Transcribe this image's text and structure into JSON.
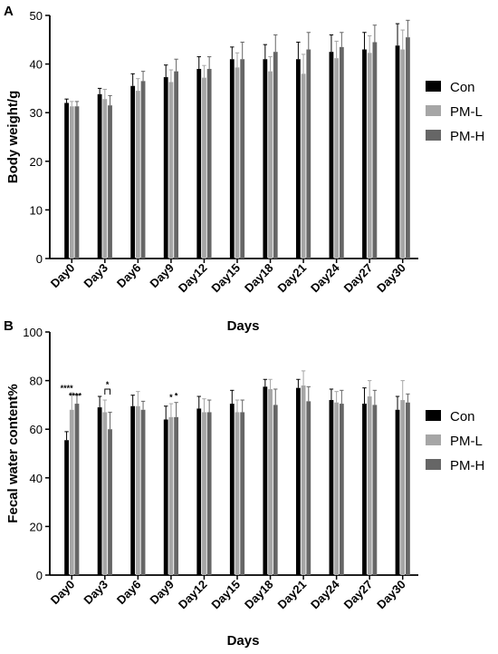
{
  "chart_data": [
    {
      "panel": "A",
      "type": "bar",
      "xlabel": "Days",
      "ylabel": "Body weight/g",
      "ylim": [
        0,
        50
      ],
      "yticks": [
        0,
        10,
        20,
        30,
        40,
        50
      ],
      "categories": [
        "Day0",
        "Day3",
        "Day6",
        "Day9",
        "Day12",
        "Day15",
        "Day18",
        "Day21",
        "Day24",
        "Day27",
        "Day30"
      ],
      "legend_position": "right",
      "series": [
        {
          "name": "Con",
          "color": "#000000",
          "values": [
            32.0,
            33.8,
            35.5,
            37.3,
            39.0,
            41.0,
            41.0,
            41.0,
            42.5,
            43.0,
            43.8
          ],
          "errors": [
            0.8,
            1.2,
            2.5,
            2.5,
            2.5,
            2.5,
            3.0,
            3.5,
            3.5,
            3.5,
            4.5
          ]
        },
        {
          "name": "PM-L",
          "color": "#a6a6a6",
          "values": [
            31.3,
            32.8,
            34.5,
            36.3,
            37.2,
            39.3,
            38.5,
            38.0,
            41.2,
            42.3,
            43.0
          ],
          "errors": [
            1.0,
            2.0,
            2.5,
            2.5,
            2.5,
            3.0,
            3.0,
            4.0,
            3.5,
            3.5,
            4.0
          ]
        },
        {
          "name": "PM-H",
          "color": "#666666",
          "values": [
            31.3,
            31.5,
            36.5,
            38.5,
            39.0,
            41.0,
            42.5,
            43.0,
            43.5,
            44.5,
            45.5
          ],
          "errors": [
            1.0,
            2.0,
            2.0,
            2.5,
            2.5,
            3.5,
            3.5,
            3.5,
            3.0,
            3.5,
            3.5
          ]
        }
      ]
    },
    {
      "panel": "B",
      "type": "bar",
      "xlabel": "Days",
      "ylabel": "Fecal water content%",
      "ylim": [
        0,
        100
      ],
      "yticks": [
        0,
        20,
        40,
        60,
        80,
        100
      ],
      "categories": [
        "Day0",
        "Day3",
        "Day6",
        "Day9",
        "Day12",
        "Day15",
        "Day18",
        "Day21",
        "Day24",
        "Day27",
        "Day30"
      ],
      "legend_position": "right",
      "series": [
        {
          "name": "Con",
          "color": "#000000",
          "values": [
            55.5,
            69.0,
            69.5,
            64.0,
            68.5,
            70.5,
            77.5,
            77.0,
            72.0,
            70.5,
            68.0
          ],
          "errors": [
            3.5,
            4.5,
            4.5,
            5.5,
            5.0,
            5.5,
            3.0,
            3.5,
            4.5,
            6.5,
            5.5
          ]
        },
        {
          "name": "PM-L",
          "color": "#a6a6a6",
          "values": [
            68.0,
            67.0,
            69.5,
            65.0,
            67.0,
            67.0,
            76.5,
            78.0,
            71.0,
            73.5,
            72.0
          ],
          "errors": [
            7.0,
            5.0,
            6.0,
            5.5,
            5.5,
            5.0,
            4.0,
            6.0,
            4.5,
            6.5,
            8.0
          ]
        },
        {
          "name": "PM-H",
          "color": "#666666",
          "values": [
            70.5,
            60.0,
            68.0,
            65.0,
            67.0,
            67.0,
            70.0,
            71.5,
            70.5,
            70.0,
            71.0
          ],
          "errors": [
            3.5,
            7.0,
            3.5,
            6.0,
            5.0,
            5.0,
            6.5,
            6.0,
            5.5,
            6.0,
            3.5
          ]
        }
      ],
      "annotations": [
        {
          "text": "****",
          "category": "Day0",
          "from_series": "Con",
          "to_series": "PM-L"
        },
        {
          "text": "****",
          "category": "Day0",
          "from_series": "Con",
          "to_series": "PM-H"
        },
        {
          "text": "*",
          "category": "Day3",
          "from_series": "PM-L",
          "to_series": "PM-H"
        },
        {
          "text": "*",
          "category": "Day9",
          "over_series": "PM-L"
        },
        {
          "text": "*",
          "category": "Day9",
          "over_series": "PM-H"
        }
      ]
    }
  ]
}
